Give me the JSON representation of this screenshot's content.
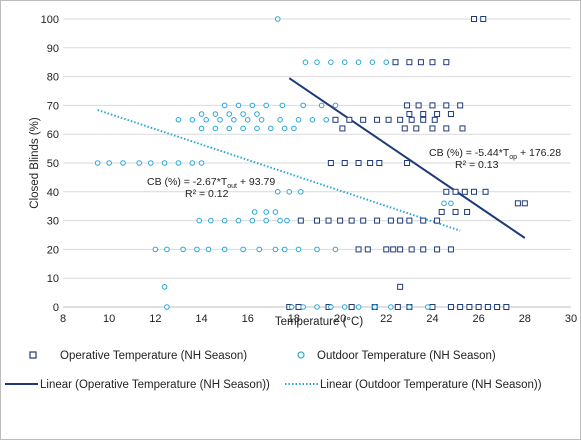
{
  "chart_data": {
    "type": "scatter",
    "xlabel": "Temperature (°C)",
    "ylabel": "Closed Blinds (%)",
    "xlim": [
      8,
      30
    ],
    "ylim": [
      0,
      100
    ],
    "xticks": [
      "8",
      "10",
      "12",
      "14",
      "16",
      "18",
      "20",
      "22",
      "24",
      "26",
      "28",
      "30"
    ],
    "yticks": [
      "0",
      "10",
      "20",
      "30",
      "40",
      "50",
      "60",
      "70",
      "80",
      "90",
      "100"
    ],
    "grid": "horizontal",
    "legend_placement": "bottom",
    "series": [
      {
        "name": "Operative Temperature (NH Season)",
        "marker": "square",
        "color": "#1f3a7a",
        "points": [
          [
            17.8,
            0
          ],
          [
            18.2,
            0
          ],
          [
            19.5,
            0
          ],
          [
            20.5,
            0
          ],
          [
            21.5,
            0
          ],
          [
            22.5,
            0
          ],
          [
            23.0,
            0
          ],
          [
            24.0,
            0
          ],
          [
            24.8,
            0
          ],
          [
            25.2,
            0
          ],
          [
            25.6,
            0
          ],
          [
            26.0,
            0
          ],
          [
            26.4,
            0
          ],
          [
            26.8,
            0
          ],
          [
            27.2,
            0
          ],
          [
            22.6,
            7
          ],
          [
            20.8,
            20
          ],
          [
            21.2,
            20
          ],
          [
            22.0,
            20
          ],
          [
            22.3,
            20
          ],
          [
            22.6,
            20
          ],
          [
            23.1,
            20
          ],
          [
            23.6,
            20
          ],
          [
            24.2,
            20
          ],
          [
            24.8,
            20
          ],
          [
            18.3,
            30
          ],
          [
            19.0,
            30
          ],
          [
            19.5,
            30
          ],
          [
            20.0,
            30
          ],
          [
            20.5,
            30
          ],
          [
            21.0,
            30
          ],
          [
            21.6,
            30
          ],
          [
            22.2,
            30
          ],
          [
            22.6,
            30
          ],
          [
            23.0,
            30
          ],
          [
            23.6,
            30
          ],
          [
            24.2,
            30
          ],
          [
            24.4,
            33
          ],
          [
            25.0,
            33
          ],
          [
            25.5,
            33
          ],
          [
            27.7,
            36
          ],
          [
            28.0,
            36
          ],
          [
            24.6,
            40
          ],
          [
            25.0,
            40
          ],
          [
            25.4,
            40
          ],
          [
            25.8,
            40
          ],
          [
            26.3,
            40
          ],
          [
            19.6,
            50
          ],
          [
            20.2,
            50
          ],
          [
            20.8,
            50
          ],
          [
            21.3,
            50
          ],
          [
            21.7,
            50
          ],
          [
            22.9,
            50
          ],
          [
            20.1,
            62
          ],
          [
            22.8,
            62
          ],
          [
            23.3,
            62
          ],
          [
            24.0,
            62
          ],
          [
            24.6,
            62
          ],
          [
            25.3,
            62
          ],
          [
            19.8,
            65
          ],
          [
            20.4,
            65
          ],
          [
            21.0,
            65
          ],
          [
            21.6,
            65
          ],
          [
            22.1,
            65
          ],
          [
            22.6,
            65
          ],
          [
            23.1,
            65
          ],
          [
            23.6,
            65
          ],
          [
            24.1,
            65
          ],
          [
            23.0,
            67
          ],
          [
            23.6,
            67
          ],
          [
            24.2,
            67
          ],
          [
            24.8,
            67
          ],
          [
            22.9,
            70
          ],
          [
            23.4,
            70
          ],
          [
            24.0,
            70
          ],
          [
            24.6,
            70
          ],
          [
            25.2,
            70
          ],
          [
            22.4,
            85
          ],
          [
            23.0,
            85
          ],
          [
            23.5,
            85
          ],
          [
            24.0,
            85
          ],
          [
            24.6,
            85
          ],
          [
            25.8,
            100
          ],
          [
            26.2,
            100
          ]
        ]
      },
      {
        "name": "Outdoor Temperature (NH Season)",
        "marker": "circle",
        "color": "#2aa7d6",
        "points": [
          [
            12.5,
            0
          ],
          [
            17.9,
            0
          ],
          [
            18.4,
            0
          ],
          [
            19.0,
            0
          ],
          [
            19.6,
            0
          ],
          [
            20.2,
            0
          ],
          [
            20.8,
            0
          ],
          [
            21.5,
            0
          ],
          [
            22.2,
            0
          ],
          [
            23.0,
            0
          ],
          [
            23.8,
            0
          ],
          [
            12.4,
            7
          ],
          [
            12.0,
            20
          ],
          [
            12.5,
            20
          ],
          [
            13.2,
            20
          ],
          [
            13.8,
            20
          ],
          [
            14.3,
            20
          ],
          [
            15.0,
            20
          ],
          [
            15.8,
            20
          ],
          [
            16.5,
            20
          ],
          [
            17.2,
            20
          ],
          [
            17.6,
            20
          ],
          [
            18.2,
            20
          ],
          [
            19.0,
            20
          ],
          [
            19.8,
            20
          ],
          [
            13.9,
            30
          ],
          [
            14.4,
            30
          ],
          [
            15.0,
            30
          ],
          [
            15.6,
            30
          ],
          [
            16.2,
            30
          ],
          [
            16.8,
            30
          ],
          [
            17.4,
            30
          ],
          [
            17.7,
            30
          ],
          [
            16.3,
            33
          ],
          [
            16.8,
            33
          ],
          [
            17.2,
            33
          ],
          [
            17.3,
            40
          ],
          [
            17.8,
            40
          ],
          [
            18.3,
            40
          ],
          [
            24.5,
            36
          ],
          [
            24.8,
            36
          ],
          [
            9.5,
            50
          ],
          [
            10.0,
            50
          ],
          [
            10.6,
            50
          ],
          [
            11.3,
            50
          ],
          [
            11.8,
            50
          ],
          [
            12.4,
            50
          ],
          [
            13.0,
            50
          ],
          [
            13.6,
            50
          ],
          [
            14.0,
            50
          ],
          [
            14.0,
            62
          ],
          [
            14.6,
            62
          ],
          [
            15.2,
            62
          ],
          [
            15.8,
            62
          ],
          [
            16.4,
            62
          ],
          [
            17.0,
            62
          ],
          [
            17.6,
            62
          ],
          [
            18.0,
            62
          ],
          [
            13.0,
            65
          ],
          [
            13.6,
            65
          ],
          [
            14.2,
            65
          ],
          [
            14.8,
            65
          ],
          [
            15.4,
            65
          ],
          [
            16.0,
            65
          ],
          [
            16.6,
            65
          ],
          [
            17.4,
            65
          ],
          [
            18.2,
            65
          ],
          [
            18.8,
            65
          ],
          [
            19.4,
            65
          ],
          [
            14.0,
            67
          ],
          [
            14.6,
            67
          ],
          [
            15.2,
            67
          ],
          [
            15.8,
            67
          ],
          [
            16.4,
            67
          ],
          [
            15.0,
            70
          ],
          [
            15.6,
            70
          ],
          [
            16.2,
            70
          ],
          [
            16.8,
            70
          ],
          [
            17.5,
            70
          ],
          [
            18.4,
            70
          ],
          [
            19.2,
            70
          ],
          [
            19.8,
            70
          ],
          [
            18.5,
            85
          ],
          [
            19.0,
            85
          ],
          [
            19.6,
            85
          ],
          [
            20.2,
            85
          ],
          [
            20.8,
            85
          ],
          [
            21.4,
            85
          ],
          [
            22.0,
            85
          ],
          [
            17.3,
            100
          ]
        ]
      }
    ],
    "trendlines": [
      {
        "name": "Linear (Operative Temperature (NH Season))",
        "style": "solid",
        "color": "#1f3a7a",
        "x_range": [
          17.8,
          28.0
        ],
        "slope": -5.44,
        "intercept": 176.28
      },
      {
        "name": "Linear (Outdoor Temperature (NH Season))",
        "style": "dotted",
        "color": "#2aa7d6",
        "x_range": [
          9.5,
          25.2
        ],
        "slope": -2.67,
        "intercept": 93.79
      }
    ],
    "annotations": {
      "op_eq_main": "CB (%) = -5.44*T",
      "op_eq_sub": "op",
      "op_eq_tail": " + 176.28",
      "op_r2": "R² = 0.13",
      "out_eq_main": "CB (%) = -2.67*T",
      "out_eq_sub": "out",
      "out_eq_tail": " + 93.79",
      "out_r2": "R² = 0.12"
    }
  }
}
